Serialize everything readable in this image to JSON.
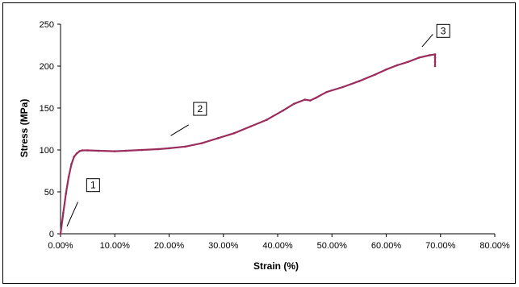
{
  "chart_data": {
    "type": "line",
    "title": "",
    "xlabel": "Strain (%)",
    "ylabel": "Stress (MPa)",
    "xlim": [
      0,
      0.8
    ],
    "ylim": [
      0,
      250
    ],
    "x_ticks": [
      0,
      0.1,
      0.2,
      0.3,
      0.4,
      0.5,
      0.6,
      0.7,
      0.8
    ],
    "x_tick_labels": [
      "0.00%",
      "10.00%",
      "20.00%",
      "30.00%",
      "40.00%",
      "50.00%",
      "60.00%",
      "70.00%",
      "80.00%"
    ],
    "y_ticks": [
      0,
      50,
      100,
      150,
      200,
      250
    ],
    "y_tick_labels": [
      "0",
      "50",
      "100",
      "150",
      "200",
      "250"
    ],
    "grid": false,
    "legend": "none",
    "series_color": "#9b2d5c",
    "series": [
      {
        "values": [
          [
            0,
            0
          ],
          [
            0.005,
            25
          ],
          [
            0.01,
            48
          ],
          [
            0.015,
            68
          ],
          [
            0.02,
            83
          ],
          [
            0.025,
            92
          ],
          [
            0.03,
            96
          ],
          [
            0.035,
            98.5
          ],
          [
            0.04,
            99.5
          ],
          [
            0.05,
            99.5
          ],
          [
            0.07,
            99
          ],
          [
            0.1,
            98.5
          ],
          [
            0.12,
            99
          ],
          [
            0.15,
            100
          ],
          [
            0.18,
            101
          ],
          [
            0.2,
            102
          ],
          [
            0.23,
            104
          ],
          [
            0.26,
            108
          ],
          [
            0.29,
            114
          ],
          [
            0.32,
            120
          ],
          [
            0.35,
            128
          ],
          [
            0.38,
            136
          ],
          [
            0.41,
            147
          ],
          [
            0.43,
            155
          ],
          [
            0.45,
            160
          ],
          [
            0.46,
            159
          ],
          [
            0.47,
            162
          ],
          [
            0.49,
            169
          ],
          [
            0.52,
            175
          ],
          [
            0.55,
            182
          ],
          [
            0.58,
            190
          ],
          [
            0.6,
            196
          ],
          [
            0.62,
            201
          ],
          [
            0.64,
            205
          ],
          [
            0.66,
            210
          ],
          [
            0.68,
            213
          ],
          [
            0.69,
            214
          ],
          [
            0.69,
            210
          ],
          [
            0.69,
            205
          ],
          [
            0.69,
            200
          ]
        ]
      }
    ],
    "annotations": [
      {
        "label": "1",
        "x": 0.06,
        "y": 58
      },
      {
        "label": "2",
        "x": 0.257,
        "y": 149
      },
      {
        "label": "3",
        "x": 0.705,
        "y": 242
      }
    ]
  }
}
